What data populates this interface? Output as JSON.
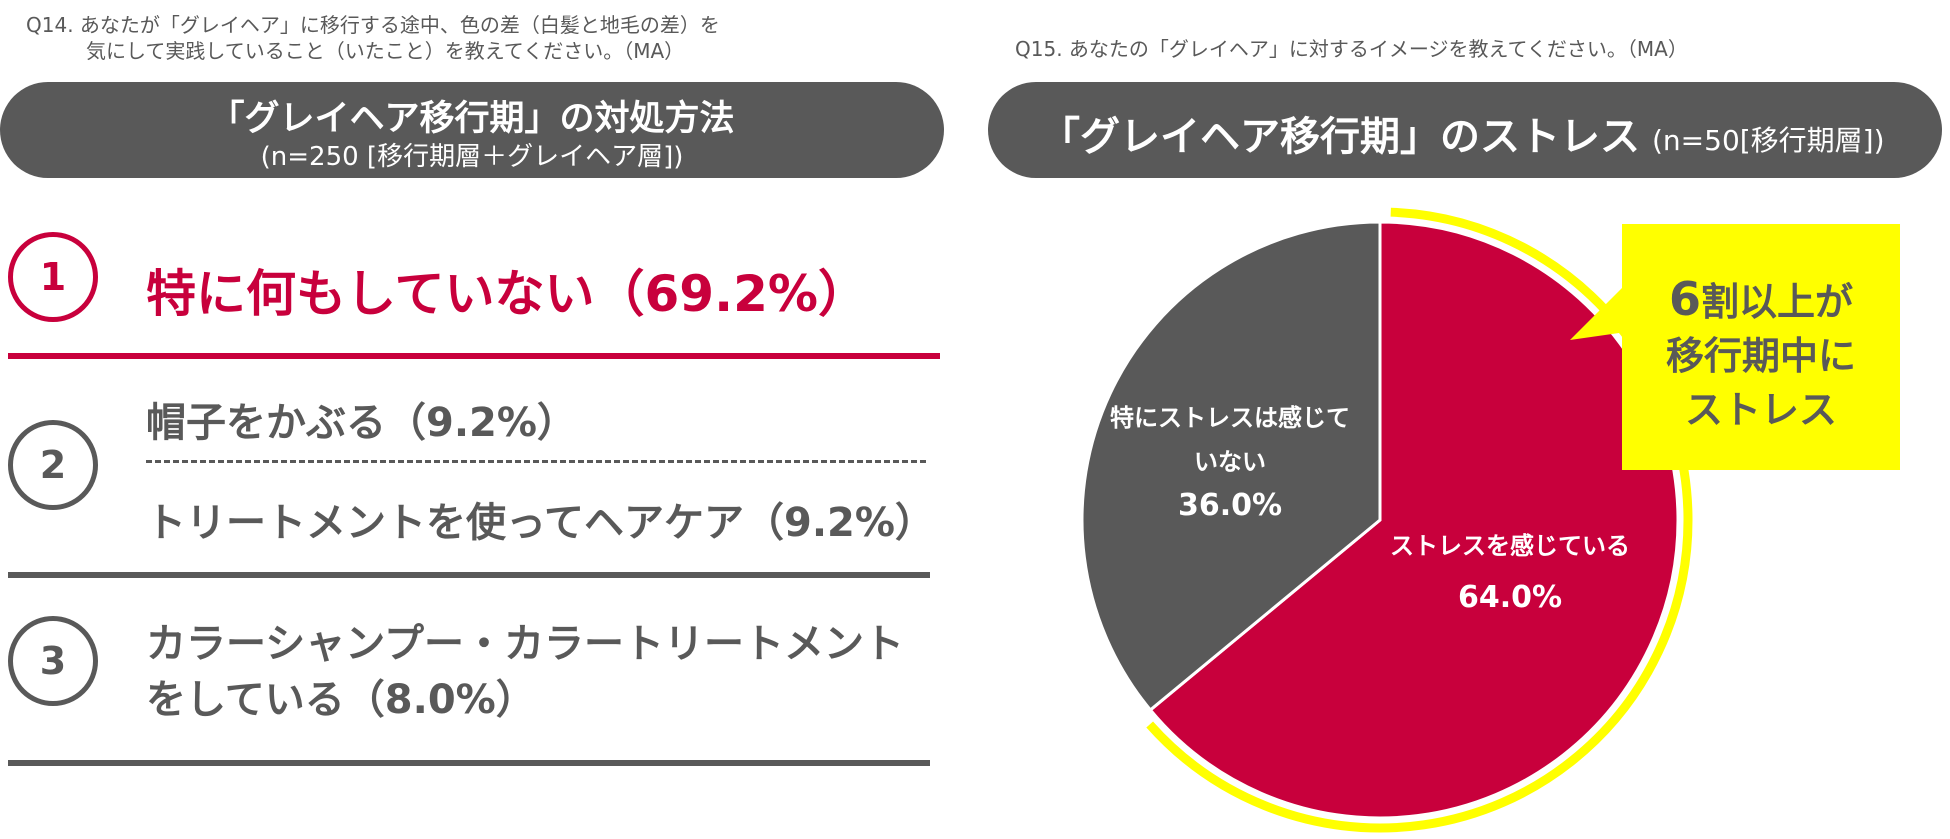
{
  "left": {
    "question_line1": "Q14. あなたが「グレイヘア」に移行する途中、色の差（白髪と地毛の差）を",
    "question_line2": "気にして実践していること（いたこと）を教えてください。（MA）",
    "pill_title": "「グレイヘア移行期」の対処方法",
    "pill_subtitle": "(n=250 [移行期層＋グレイヘア層])",
    "ranks": [
      {
        "number": "1",
        "items": [
          "特に何もしていない（69.2%）"
        ]
      },
      {
        "number": "2",
        "items": [
          "帽子をかぶる（9.2%）",
          "トリートメントを使ってヘアケア（9.2%）"
        ]
      },
      {
        "number": "3",
        "items": [
          "カラーシャンプー・カラートリートメントをしている（8.0%）"
        ]
      }
    ]
  },
  "right": {
    "question": "Q15. あなたの「グレイヘア」に対するイメージを教えてください。（MA）",
    "pill_title": "「グレイヘア移行期」のストレス",
    "pill_subtitle": "(n=50[移行期層])",
    "callout": {
      "line1_num": "6",
      "line1_rest": "割以上が",
      "line2": "移行期中に",
      "line3": "ストレス",
      "bg_color": "#ffff00"
    }
  },
  "chart_data": {
    "type": "pie",
    "title": "「グレイヘア移行期」のストレス",
    "slices": [
      {
        "label_line1": "ストレスを感じている",
        "label_line2": "",
        "value": 64.0,
        "display": "64.0%",
        "color": "#c8003c"
      },
      {
        "label_line1": "特にストレスは感じて",
        "label_line2": "いない",
        "value": 36.0,
        "display": "36.0%",
        "color": "#595959"
      }
    ],
    "highlight_color": "#ffff00",
    "start_angle": "12 o'clock, clockwise"
  }
}
